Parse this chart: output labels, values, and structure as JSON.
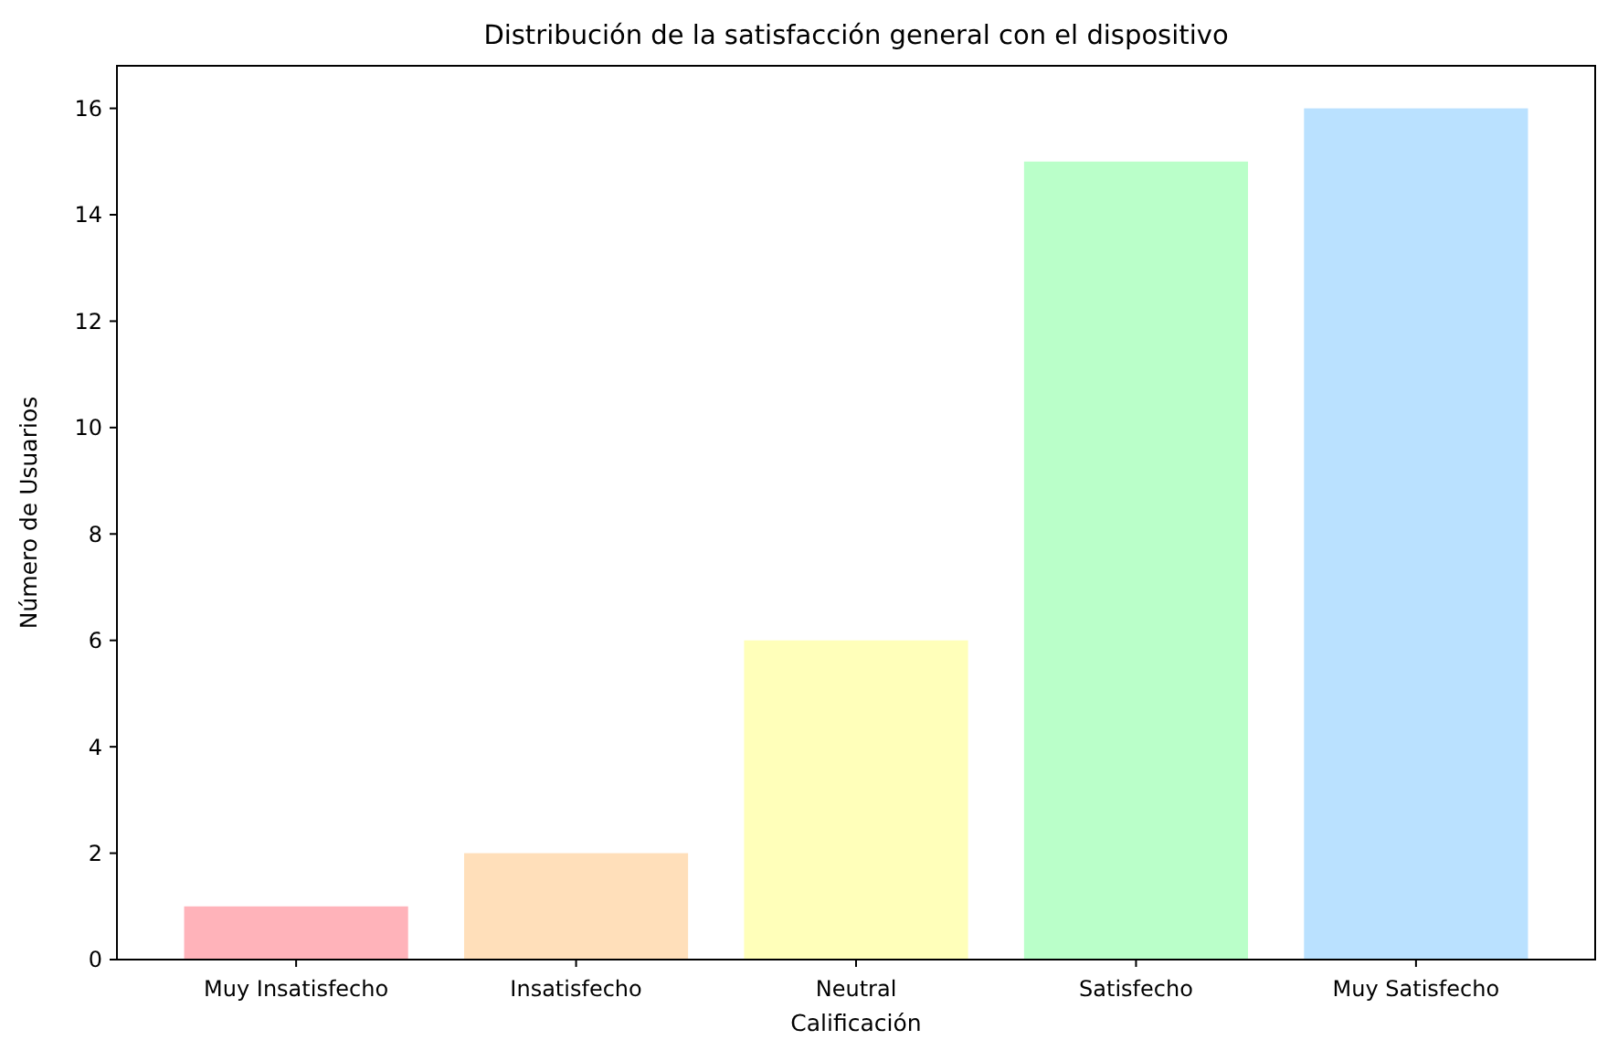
{
  "chart_data": {
    "type": "bar",
    "title": "Distribución de la satisfacción general con el dispositivo",
    "xlabel": "Calificación",
    "ylabel": "Número de Usuarios",
    "categories": [
      "Muy Insatisfecho",
      "Insatisfecho",
      "Neutral",
      "Satisfecho",
      "Muy Satisfecho"
    ],
    "values": [
      1,
      2,
      6,
      15,
      16
    ],
    "colors": [
      "#ffb3ba",
      "#ffdfba",
      "#ffffba",
      "#baffc9",
      "#bae1ff"
    ],
    "ylim": [
      0,
      16.8
    ],
    "yticks": [
      0,
      2,
      4,
      6,
      8,
      10,
      12,
      14,
      16
    ],
    "grid": false
  }
}
